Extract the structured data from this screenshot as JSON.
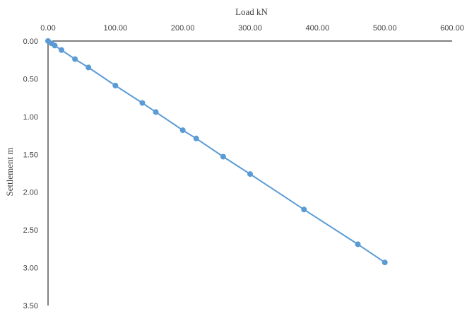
{
  "chart_data": {
    "type": "scatter",
    "title": "",
    "xlabel": "Load kN",
    "ylabel": "Settlement m",
    "xlim": [
      0,
      600
    ],
    "ylim": [
      0,
      3.5
    ],
    "x_axis_position": "top",
    "y_axis_inverted": true,
    "grid": false,
    "legend": "none",
    "x_ticks": [
      "0.00",
      "100.00",
      "200.00",
      "300.00",
      "400.00",
      "500.00",
      "600.00"
    ],
    "y_ticks": [
      "0.00",
      "0.50",
      "1.00",
      "1.50",
      "2.00",
      "2.50",
      "3.00",
      "3.50"
    ],
    "series": [
      {
        "color": "#5b9bd5",
        "marker": "circle",
        "line": true,
        "x": [
          0,
          5,
          10,
          20,
          40,
          60,
          100,
          140,
          160,
          200,
          220,
          260,
          300,
          380,
          460,
          500
        ],
        "y": [
          0,
          0.03,
          0.06,
          0.12,
          0.24,
          0.35,
          0.59,
          0.82,
          0.94,
          1.18,
          1.29,
          1.53,
          1.76,
          2.23,
          2.69,
          2.93
        ]
      }
    ]
  }
}
